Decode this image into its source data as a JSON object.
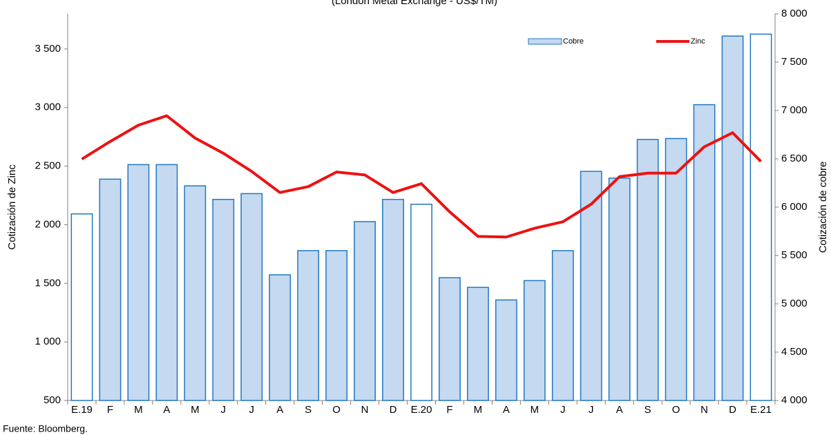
{
  "chart_data": {
    "type": "bar-line",
    "title": "(London Metal Exchange - US$/TM)",
    "source": "Fuente: Bloomberg.",
    "y_label": "Cotización de Zinc",
    "y2_label": "Cotización de cobre",
    "categories": [
      "E.19",
      "F",
      "M",
      "A",
      "M",
      "J",
      "J",
      "A",
      "S",
      "O",
      "N",
      "D",
      "E.20",
      "F",
      "M",
      "A",
      "M",
      "J",
      "J",
      "A",
      "S",
      "O",
      "N",
      "D",
      "E.21"
    ],
    "series": [
      {
        "name": "Cobre",
        "type": "bar",
        "axis": "y2",
        "color": "#c5d9f1",
        "edge_color": "#1f77c0",
        "point_colors": [
          "#ffffff",
          "#c5d9f1",
          "#c5d9f1",
          "#c5d9f1",
          "#c5d9f1",
          "#c5d9f1",
          "#c5d9f1",
          "#c5d9f1",
          "#c5d9f1",
          "#c5d9f1",
          "#c5d9f1",
          "#c5d9f1",
          "#ffffff",
          "#c5d9f1",
          "#c5d9f1",
          "#c5d9f1",
          "#c5d9f1",
          "#c5d9f1",
          "#c5d9f1",
          "#c5d9f1",
          "#c5d9f1",
          "#c5d9f1",
          "#c5d9f1",
          "#c5d9f1",
          "#ffffff"
        ],
        "values": [
          5930,
          6290,
          6440,
          6440,
          6220,
          6080,
          6140,
          5300,
          5550,
          5550,
          5850,
          6080,
          6030,
          5270,
          5170,
          5040,
          5240,
          5550,
          6370,
          6300,
          6700,
          6710,
          7060,
          7770,
          7790
        ]
      },
      {
        "name": "Zinc",
        "type": "line",
        "axis": "y",
        "color": "#ee1111",
        "values": [
          2560,
          2710,
          2850,
          2930,
          2740,
          2610,
          2455,
          2275,
          2325,
          2450,
          2425,
          2275,
          2350,
          2110,
          1900,
          1895,
          1970,
          2025,
          2175,
          2410,
          2440,
          2440,
          2665,
          2785,
          2540
        ]
      }
    ],
    "ylim": [
      500,
      3800
    ],
    "yticks": [
      500,
      {
        "value": 1000,
        "label": "1 000"
      },
      {
        "value": 1500,
        "label": "1 500"
      },
      {
        "value": 2000,
        "label": "2 000"
      },
      {
        "value": 2500,
        "label": "2 500"
      },
      {
        "value": 3000,
        "label": "3 000"
      },
      {
        "value": 3500,
        "label": "3 500"
      }
    ],
    "y2lim": [
      4000,
      8000
    ],
    "y2ticks": [
      {
        "value": 4000,
        "label": "4 000"
      },
      {
        "value": 4500,
        "label": "4 500"
      },
      {
        "value": 5000,
        "label": "5 000"
      },
      {
        "value": 5500,
        "label": "5 500"
      },
      {
        "value": 6000,
        "label": "6 000"
      },
      {
        "value": 6500,
        "label": "6 500"
      },
      {
        "value": 7000,
        "label": "7 000"
      },
      {
        "value": 7500,
        "label": "7 500"
      },
      {
        "value": 8000,
        "label": "8 000"
      }
    ],
    "legend": "top-right",
    "grid": false
  }
}
